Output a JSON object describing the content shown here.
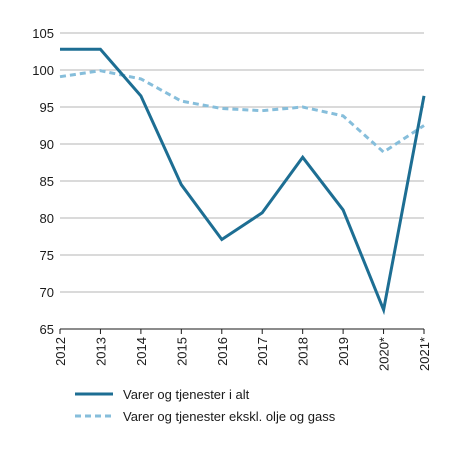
{
  "chart_data": {
    "type": "line",
    "categories": [
      "2012",
      "2013",
      "2014",
      "2015",
      "2016",
      "2017",
      "2018",
      "2019",
      "2020*",
      "2021*"
    ],
    "ylim": [
      65,
      105
    ],
    "yticks": [
      65,
      70,
      75,
      80,
      85,
      90,
      95,
      100,
      105
    ],
    "grid": true,
    "legend_placement": "bottom",
    "series": [
      {
        "name": "Varer og tjenester i alt",
        "values": [
          102.8,
          102.8,
          96.5,
          84.5,
          77.1,
          80.7,
          88.2,
          81.1,
          67.6,
          96.5
        ],
        "color": "#1d6e93",
        "style": "solid"
      },
      {
        "name": "Varer og tjenester ekskl. olje og gass",
        "values": [
          99.1,
          99.9,
          98.8,
          95.8,
          94.8,
          94.5,
          95.0,
          93.8,
          88.9,
          92.5
        ],
        "color": "#86bedb",
        "style": "dashed"
      }
    ]
  }
}
